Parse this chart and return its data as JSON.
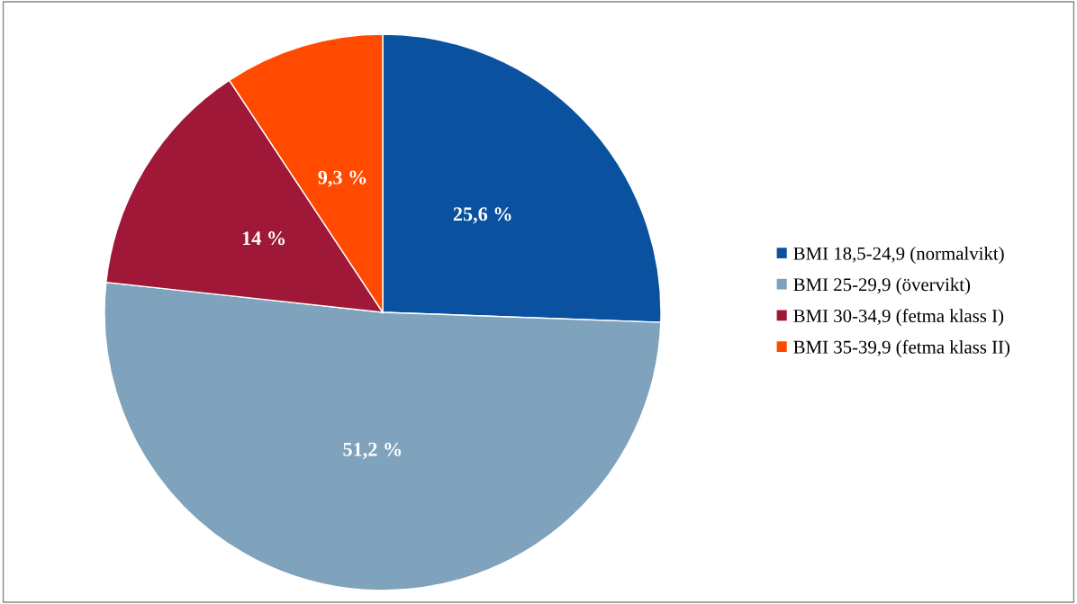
{
  "chart_data": {
    "type": "pie",
    "categories": [
      "BMI 18,5-24,9 (normalvikt)",
      "BMI 25-29,9 (övervikt)",
      "BMI 30-34,9 (fetma klass I)",
      "BMI 35-39,9 (fetma klass II)"
    ],
    "values": [
      25.6,
      51.2,
      14,
      9.3
    ],
    "colors": [
      "#0a52a0",
      "#7fa3bd",
      "#a01838",
      "#ff4a00"
    ],
    "value_labels": [
      "25,6 %",
      "51,2 %",
      "14 %",
      "9,3 %"
    ],
    "legend": "right"
  }
}
